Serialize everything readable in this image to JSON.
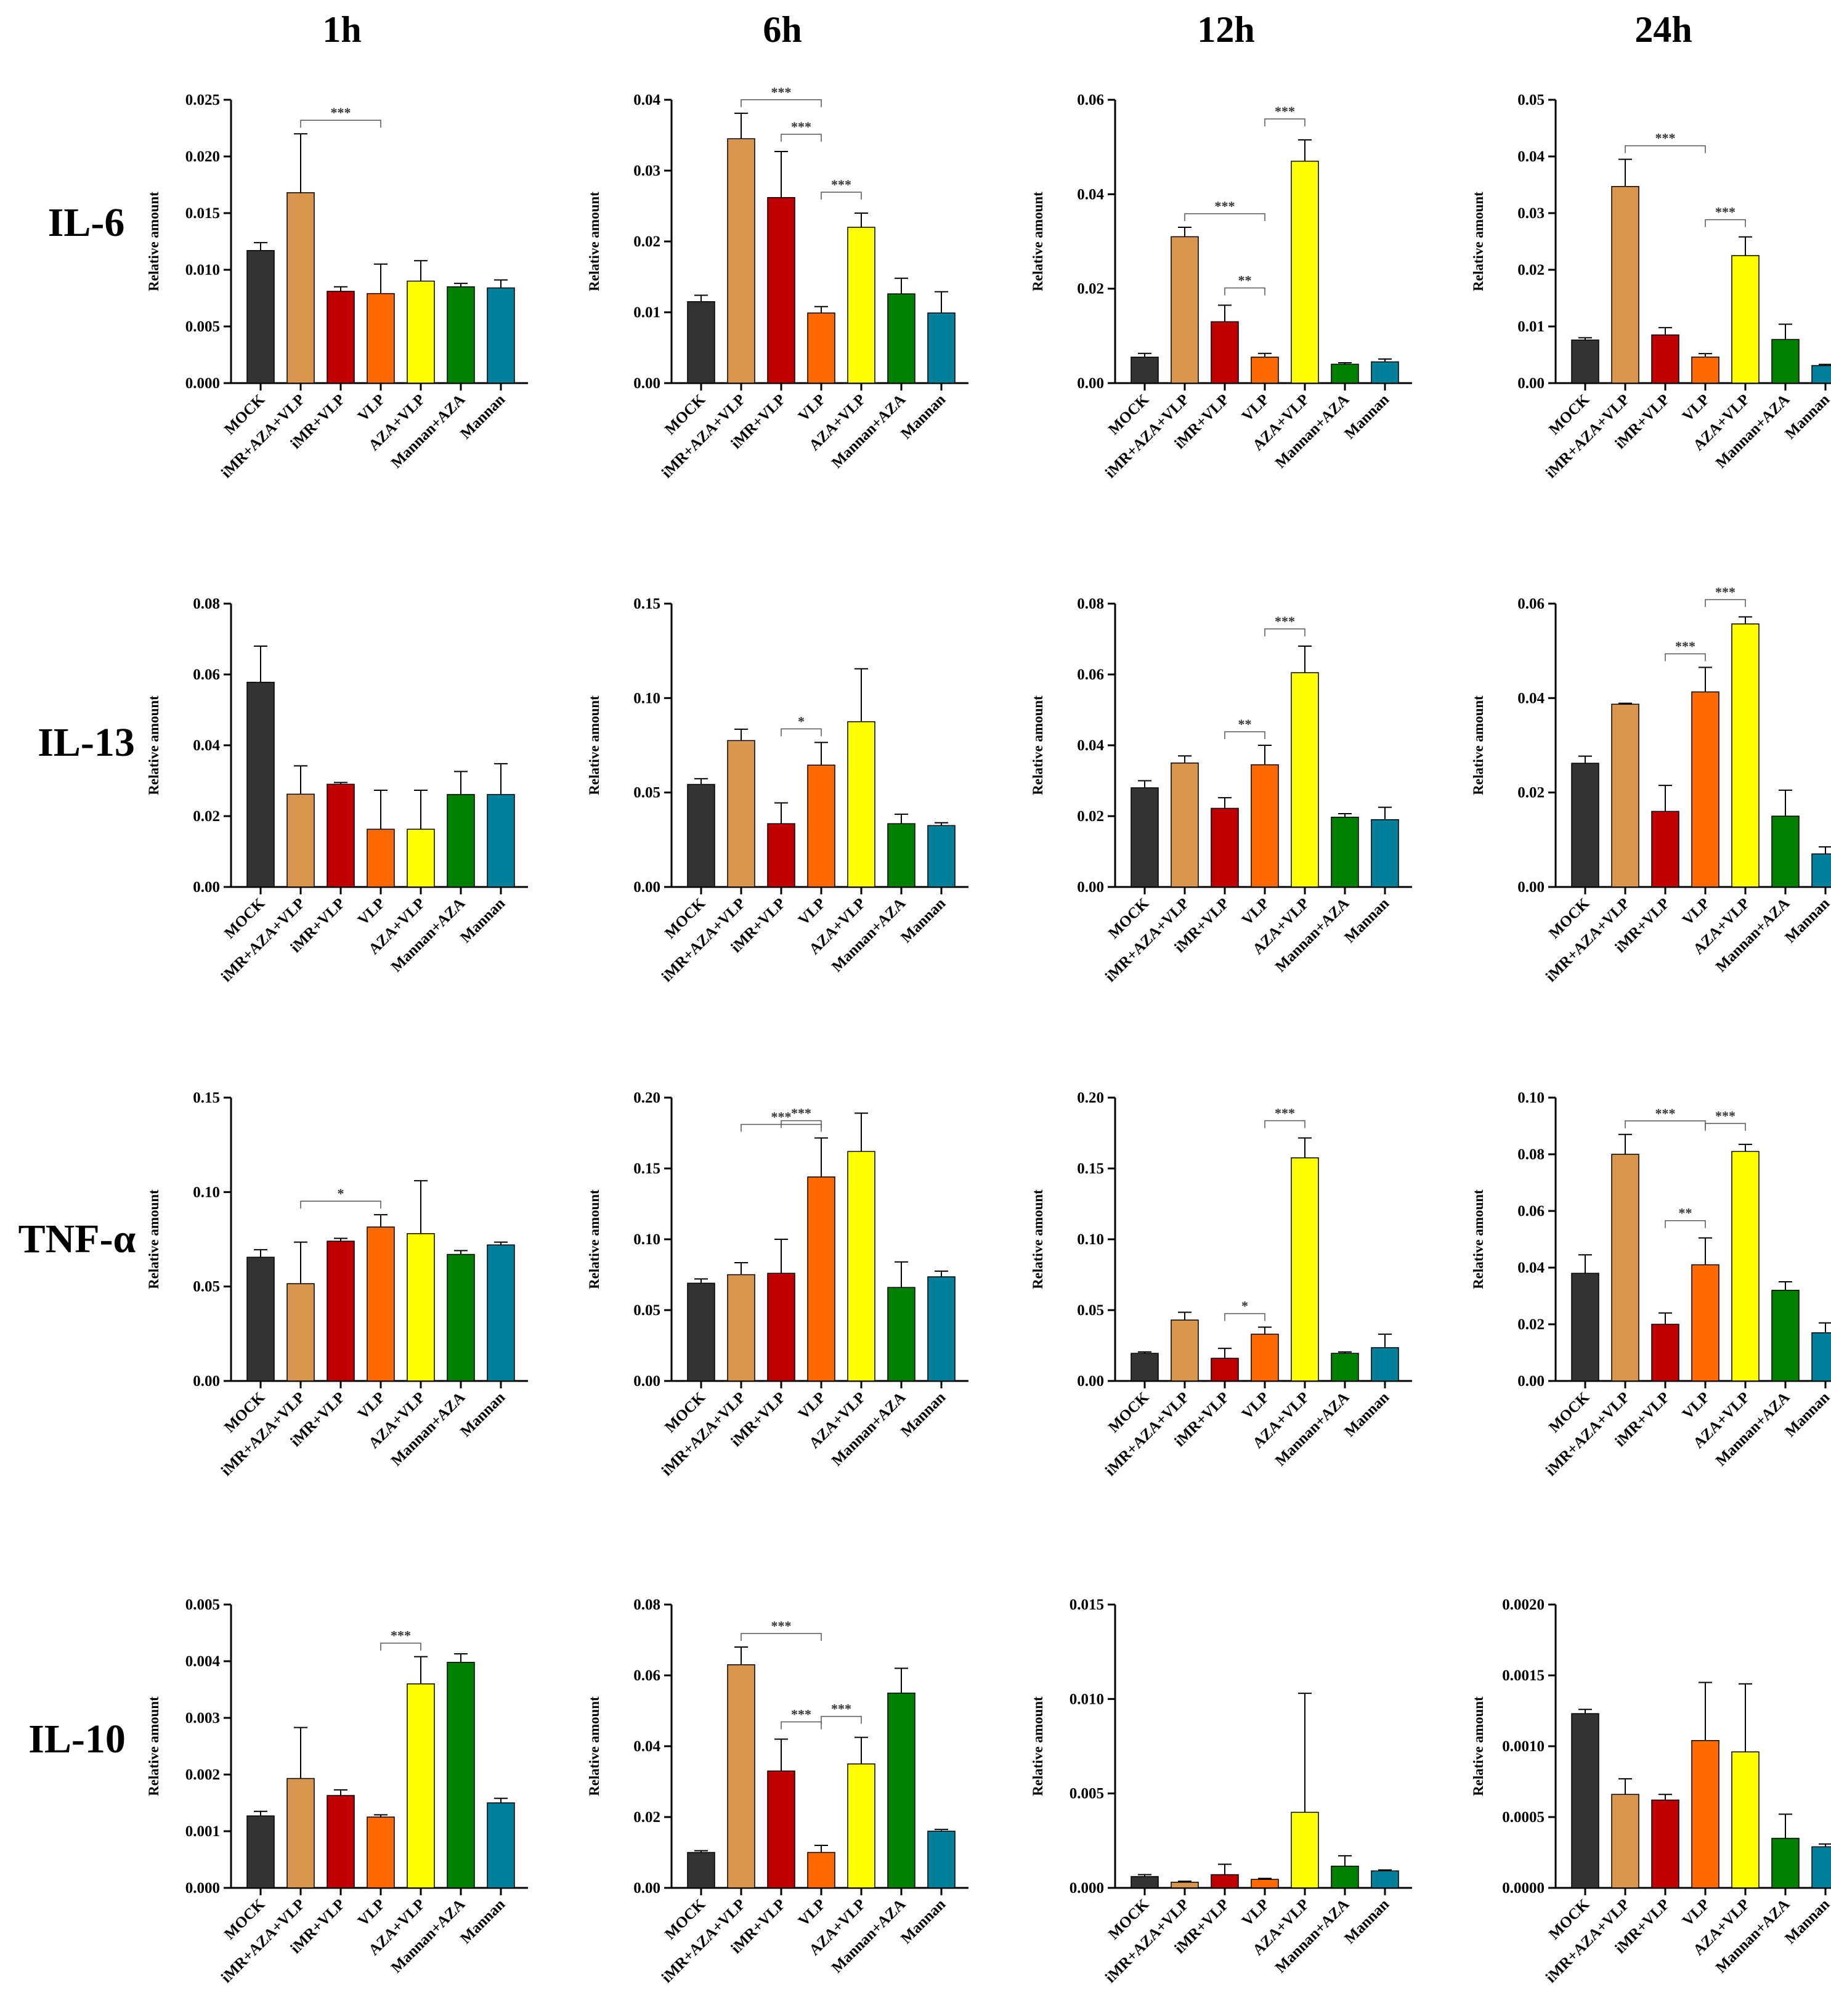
{
  "col_headers": [
    "1h",
    "6h",
    "12h",
    "24h"
  ],
  "row_headers": [
    "IL-6",
    "IL-13",
    "TNF-α",
    "IL-10"
  ],
  "categories": [
    "MOCK",
    "iMR+AZA+VLP",
    "iMR+VLP",
    "VLP",
    "AZA+VLP",
    "Mannan+AZA",
    "Mannan"
  ],
  "colors": [
    "#333333",
    "#d8964f",
    "#c00000",
    "#ff6a00",
    "#ffff00",
    "#008000",
    "#00809a"
  ],
  "ylabel": "Relative amount",
  "chart_data": [
    {
      "type": "bar",
      "row": "IL-6",
      "col": "1h",
      "ylabel": "Relative amount",
      "ylim": [
        0,
        0.025
      ],
      "ticks": [
        "0.000",
        "0.005",
        "0.010",
        "0.015",
        "0.020",
        "0.025"
      ],
      "values": [
        0.0117,
        0.0168,
        0.0081,
        0.0079,
        0.009,
        0.0085,
        0.0084
      ],
      "errors": [
        0.0007,
        0.0052,
        0.0004,
        0.0026,
        0.0018,
        0.0003,
        0.0007
      ],
      "sig": [
        {
          "a": 1,
          "b": 3,
          "label": "***"
        }
      ]
    },
    {
      "type": "bar",
      "row": "IL-6",
      "col": "6h",
      "ylabel": "Relative amount",
      "ylim": [
        0,
        0.04
      ],
      "ticks": [
        "0.00",
        "0.01",
        "0.02",
        "0.03",
        "0.04"
      ],
      "values": [
        0.0115,
        0.0345,
        0.0262,
        0.0099,
        0.022,
        0.0126,
        0.0099
      ],
      "errors": [
        0.0009,
        0.0036,
        0.0065,
        0.0009,
        0.002,
        0.0022,
        0.003
      ],
      "sig": [
        {
          "a": 1,
          "b": 3,
          "label": "***"
        },
        {
          "a": 2,
          "b": 3,
          "label": "***"
        },
        {
          "a": 3,
          "b": 4,
          "label": "***"
        }
      ]
    },
    {
      "type": "bar",
      "row": "IL-6",
      "col": "12h",
      "ylabel": "Relative amount",
      "ylim": [
        0,
        0.06
      ],
      "ticks": [
        "0.00",
        "0.02",
        "0.04",
        "0.06"
      ],
      "values": [
        0.0055,
        0.031,
        0.013,
        0.0055,
        0.047,
        0.004,
        0.0045
      ],
      "errors": [
        0.0008,
        0.002,
        0.0035,
        0.0008,
        0.0045,
        0.0003,
        0.0006
      ],
      "sig": [
        {
          "a": 1,
          "b": 3,
          "label": "***"
        },
        {
          "a": 2,
          "b": 3,
          "label": "**"
        },
        {
          "a": 3,
          "b": 4,
          "label": "***"
        }
      ]
    },
    {
      "type": "bar",
      "row": "IL-6",
      "col": "24h",
      "ylabel": "Relative amount",
      "ylim": [
        0,
        0.05
      ],
      "ticks": [
        "0.00",
        "0.01",
        "0.02",
        "0.03",
        "0.04",
        "0.05"
      ],
      "values": [
        0.0076,
        0.0347,
        0.0085,
        0.0046,
        0.0225,
        0.0077,
        0.0031
      ],
      "errors": [
        0.0004,
        0.0048,
        0.0013,
        0.0006,
        0.0033,
        0.0027,
        0.0002
      ],
      "sig": [
        {
          "a": 1,
          "b": 3,
          "label": "***"
        },
        {
          "a": 3,
          "b": 4,
          "label": "***"
        }
      ]
    },
    {
      "type": "bar",
      "row": "IL-13",
      "col": "1h",
      "ylabel": "Relative amount",
      "ylim": [
        0,
        0.08
      ],
      "ticks": [
        "0.00",
        "0.02",
        "0.04",
        "0.06",
        "0.08"
      ],
      "values": [
        0.0578,
        0.0262,
        0.029,
        0.0163,
        0.0163,
        0.0261,
        0.0261
      ],
      "errors": [
        0.0102,
        0.008,
        0.0005,
        0.011,
        0.011,
        0.0065,
        0.0087
      ],
      "sig": []
    },
    {
      "type": "bar",
      "row": "IL-13",
      "col": "6h",
      "ylabel": "Relative amount",
      "ylim": [
        0,
        0.15
      ],
      "ticks": [
        "0.00",
        "0.05",
        "0.10",
        "0.15"
      ],
      "values": [
        0.0543,
        0.0775,
        0.0335,
        0.0645,
        0.0875,
        0.0335,
        0.0325
      ],
      "errors": [
        0.003,
        0.006,
        0.011,
        0.012,
        0.028,
        0.005,
        0.0015
      ],
      "sig": [
        {
          "a": 2,
          "b": 3,
          "label": "*"
        }
      ]
    },
    {
      "type": "bar",
      "row": "IL-13",
      "col": "12h",
      "ylabel": "Relative amount",
      "ylim": [
        0,
        0.08
      ],
      "ticks": [
        "0.00",
        "0.02",
        "0.04",
        "0.06",
        "0.08"
      ],
      "values": [
        0.028,
        0.035,
        0.0222,
        0.0345,
        0.0605,
        0.0197,
        0.019
      ],
      "errors": [
        0.002,
        0.002,
        0.003,
        0.0055,
        0.0075,
        0.001,
        0.0035
      ],
      "sig": [
        {
          "a": 2,
          "b": 3,
          "label": "**"
        },
        {
          "a": 3,
          "b": 4,
          "label": "***"
        }
      ]
    },
    {
      "type": "bar",
      "row": "IL-13",
      "col": "24h",
      "ylabel": "Relative amount",
      "ylim": [
        0,
        0.06
      ],
      "ticks": [
        "0.00",
        "0.02",
        "0.04",
        "0.06"
      ],
      "values": [
        0.0262,
        0.0387,
        0.016,
        0.0413,
        0.0557,
        0.015,
        0.007
      ],
      "errors": [
        0.0015,
        0.0002,
        0.0055,
        0.0052,
        0.0015,
        0.0055,
        0.0015
      ],
      "sig": [
        {
          "a": 2,
          "b": 3,
          "label": "***"
        },
        {
          "a": 3,
          "b": 4,
          "label": "***"
        }
      ]
    },
    {
      "type": "bar",
      "row": "TNF-α",
      "col": "1h",
      "ylabel": "Relative amount",
      "ylim": [
        0,
        0.15
      ],
      "ticks": [
        "0.00",
        "0.05",
        "0.10",
        "0.15"
      ],
      "values": [
        0.0655,
        0.0515,
        0.074,
        0.0815,
        0.078,
        0.067,
        0.072
      ],
      "errors": [
        0.004,
        0.022,
        0.0015,
        0.0065,
        0.028,
        0.002,
        0.0015
      ],
      "sig": [
        {
          "a": 1,
          "b": 3,
          "label": "*"
        }
      ]
    },
    {
      "type": "bar",
      "row": "TNF-α",
      "col": "6h",
      "ylabel": "Relative amount",
      "ylim": [
        0,
        0.2
      ],
      "ticks": [
        "0.00",
        "0.05",
        "0.10",
        "0.15",
        "0.20"
      ],
      "values": [
        0.069,
        0.075,
        0.076,
        0.144,
        0.162,
        0.066,
        0.0735
      ],
      "errors": [
        0.003,
        0.0085,
        0.024,
        0.0275,
        0.027,
        0.018,
        0.004
      ],
      "sig": [
        {
          "a": 1,
          "b": 3,
          "label": "***"
        },
        {
          "a": 2,
          "b": 3,
          "label": "***"
        }
      ]
    },
    {
      "type": "bar",
      "row": "TNF-α",
      "col": "12h",
      "ylabel": "Relative amount",
      "ylim": [
        0,
        0.2
      ],
      "ticks": [
        "0.00",
        "0.05",
        "0.10",
        "0.15",
        "0.20"
      ],
      "values": [
        0.0195,
        0.043,
        0.016,
        0.033,
        0.1575,
        0.0195,
        0.0235
      ],
      "errors": [
        0.001,
        0.0055,
        0.007,
        0.005,
        0.014,
        0.001,
        0.0095
      ],
      "sig": [
        {
          "a": 2,
          "b": 3,
          "label": "*"
        },
        {
          "a": 3,
          "b": 4,
          "label": "***"
        }
      ]
    },
    {
      "type": "bar",
      "row": "TNF-α",
      "col": "24h",
      "ylabel": "Relative amount",
      "ylim": [
        0,
        0.1
      ],
      "ticks": [
        "0.00",
        "0.02",
        "0.04",
        "0.06",
        "0.08",
        "0.10"
      ],
      "values": [
        0.038,
        0.08,
        0.02,
        0.041,
        0.081,
        0.032,
        0.017
      ],
      "errors": [
        0.0065,
        0.007,
        0.004,
        0.0095,
        0.0025,
        0.003,
        0.0035
      ],
      "sig": [
        {
          "a": 1,
          "b": 3,
          "label": "***"
        },
        {
          "a": 2,
          "b": 3,
          "label": "**"
        },
        {
          "a": 3,
          "b": 4,
          "label": "***"
        }
      ]
    },
    {
      "type": "bar",
      "row": "IL-10",
      "col": "1h",
      "ylabel": "Relative amount",
      "ylim": [
        0,
        0.005
      ],
      "ticks": [
        "0.000",
        "0.001",
        "0.002",
        "0.003",
        "0.004",
        "0.005"
      ],
      "values": [
        0.00127,
        0.00193,
        0.00163,
        0.00125,
        0.0036,
        0.00398,
        0.0015
      ],
      "errors": [
        8e-05,
        0.0009,
        0.0001,
        4e-05,
        0.00048,
        0.00015,
        8e-05
      ],
      "sig": [
        {
          "a": 3,
          "b": 4,
          "label": "***"
        }
      ]
    },
    {
      "type": "bar",
      "row": "IL-10",
      "col": "6h",
      "ylabel": "Relative amount",
      "ylim": [
        0,
        0.08
      ],
      "ticks": [
        "0.00",
        "0.02",
        "0.04",
        "0.06",
        "0.08"
      ],
      "values": [
        0.01,
        0.063,
        0.033,
        0.01,
        0.035,
        0.055,
        0.016
      ],
      "errors": [
        0.0005,
        0.005,
        0.009,
        0.002,
        0.0075,
        0.007,
        0.0005
      ],
      "sig": [
        {
          "a": 1,
          "b": 3,
          "label": "***"
        },
        {
          "a": 2,
          "b": 3,
          "label": "***"
        },
        {
          "a": 3,
          "b": 4,
          "label": "***"
        }
      ]
    },
    {
      "type": "bar",
      "row": "IL-10",
      "col": "12h",
      "ylabel": "Relative amount",
      "ylim": [
        0,
        0.015
      ],
      "ticks": [
        "0.000",
        "0.005",
        "0.010",
        "0.015"
      ],
      "values": [
        0.0006,
        0.0003,
        0.0007,
        0.00045,
        0.004,
        0.00115,
        0.0009
      ],
      "errors": [
        0.0001,
        5e-05,
        0.00055,
        5e-05,
        0.0063,
        0.00055,
        5e-05
      ],
      "sig": []
    },
    {
      "type": "bar",
      "row": "IL-10",
      "col": "24h",
      "ylabel": "Relative amount",
      "ylim": [
        0,
        0.002
      ],
      "ticks": [
        "0.0000",
        "0.0005",
        "0.0010",
        "0.0015",
        "0.0020"
      ],
      "values": [
        0.00123,
        0.00066,
        0.00062,
        0.00104,
        0.00096,
        0.00035,
        0.00029
      ],
      "errors": [
        3e-05,
        0.00011,
        4e-05,
        0.00041,
        0.00048,
        0.00017,
        2e-05
      ],
      "sig": []
    }
  ]
}
